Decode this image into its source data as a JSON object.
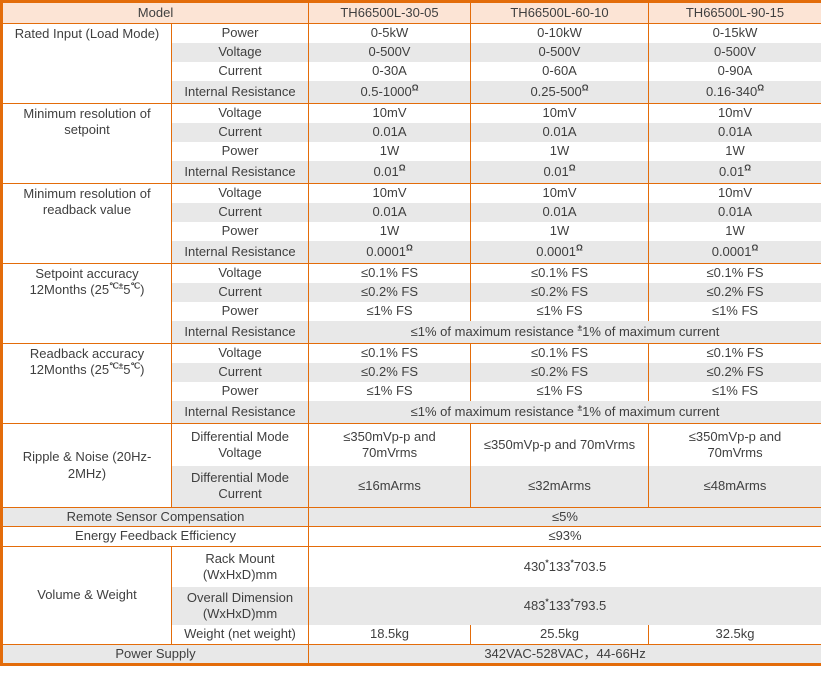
{
  "colors": {
    "grid_border": "#e36c0a",
    "header_bg": "#fce4d5",
    "alt_row_bg": "#e8e8e8",
    "text": "#3f3f3f"
  },
  "header": {
    "model_label": "Model",
    "models": [
      "TH66500L-30-05",
      "TH66500L-60-10",
      "TH66500L-90-15"
    ]
  },
  "rated_input": {
    "label": "Rated Input (Load Mode)",
    "rows": [
      {
        "param": "Power",
        "values": [
          "0-5kW",
          "0-10kW",
          "0-15kW"
        ]
      },
      {
        "param": "Voltage",
        "values": [
          "0-500V",
          "0-500V",
          "0-500V"
        ]
      },
      {
        "param": "Current",
        "values": [
          "0-30A",
          "0-60A",
          "0-90A"
        ]
      },
      {
        "param": "Internal Resistance",
        "values": [
          "0.5-1000^{Ω}",
          "0.25-500^{Ω}",
          "0.16-340^{Ω}"
        ]
      }
    ]
  },
  "setpoint_resolution": {
    "label": "Minimum resolution of\nsetpoint",
    "rows": [
      {
        "param": "Voltage",
        "values": [
          "10mV",
          "10mV",
          "10mV"
        ]
      },
      {
        "param": "Current",
        "values": [
          "0.01A",
          "0.01A",
          "0.01A"
        ]
      },
      {
        "param": "Power",
        "values": [
          "1W",
          "1W",
          "1W"
        ]
      },
      {
        "param": "Internal Resistance",
        "values": [
          "0.01^{Ω}",
          "0.01^{Ω}",
          "0.01^{Ω}"
        ]
      }
    ]
  },
  "readback_resolution": {
    "label": "Minimum resolution of\nreadback value",
    "rows": [
      {
        "param": "Voltage",
        "values": [
          "10mV",
          "10mV",
          "10mV"
        ]
      },
      {
        "param": "Current",
        "values": [
          "0.01A",
          "0.01A",
          "0.01A"
        ]
      },
      {
        "param": "Power",
        "values": [
          "1W",
          "1W",
          "1W"
        ]
      },
      {
        "param": "Internal Resistance",
        "values": [
          "0.0001^{Ω}",
          "0.0001^{Ω}",
          "0.0001^{Ω}"
        ]
      }
    ]
  },
  "setpoint_accuracy": {
    "label_line1": "Setpoint accuracy",
    "label_line2": "12Months (25^{℃±}5^{℃})",
    "rows": [
      {
        "param": "Voltage",
        "values": [
          "≤0.1% FS",
          "≤0.1% FS",
          "≤0.1% FS"
        ]
      },
      {
        "param": "Current",
        "values": [
          "≤0.2% FS",
          "≤0.2% FS",
          "≤0.2% FS"
        ]
      },
      {
        "param": "Power",
        "values": [
          "≤1% FS",
          "≤1% FS",
          "≤1% FS"
        ]
      },
      {
        "param": "Internal Resistance",
        "value_span": "≤1% of maximum resistance ^{±}1% of maximum current"
      }
    ]
  },
  "readback_accuracy": {
    "label_line1": "Readback accuracy",
    "label_line2": "12Months (25^{℃±}5^{℃})",
    "rows": [
      {
        "param": "Voltage",
        "values": [
          "≤0.1% FS",
          "≤0.1% FS",
          "≤0.1% FS"
        ]
      },
      {
        "param": "Current",
        "values": [
          "≤0.2% FS",
          "≤0.2% FS",
          "≤0.2% FS"
        ]
      },
      {
        "param": "Power",
        "values": [
          "≤1% FS",
          "≤1% FS",
          "≤1% FS"
        ]
      },
      {
        "param": "Internal Resistance",
        "value_span": "≤1% of maximum resistance ^{±}1% of maximum current"
      }
    ]
  },
  "ripple_noise": {
    "label": "Ripple & Noise (20Hz-2MHz)",
    "rows": [
      {
        "param": "Differential Mode Voltage",
        "values": [
          "≤350mVp-p and\n70mVrms",
          "≤350mVp-p and 70mVrms",
          "≤350mVp-p and\n70mVrms"
        ]
      },
      {
        "param": "Differential Mode Current",
        "values": [
          "≤16mArms",
          "≤32mArms",
          "≤48mArms"
        ]
      }
    ]
  },
  "remote_sensor": {
    "label": "Remote Sensor Compensation",
    "value": "≤5%"
  },
  "energy_feedback": {
    "label": "Energy Feedback Efficiency",
    "value": "≤93%"
  },
  "volume_weight": {
    "label": "Volume & Weight",
    "rows": [
      {
        "param": "Rack Mount (WxHxD)mm",
        "value_span": "430^{*}133^{*}703.5"
      },
      {
        "param": "Overall Dimension (WxHxD)mm",
        "value_span": "483^{*}133^{*}793.5"
      },
      {
        "param": "Weight (net weight)",
        "values": [
          "18.5kg",
          "25.5kg",
          "32.5kg"
        ]
      }
    ]
  },
  "power_supply": {
    "label": "Power Supply",
    "value": "342VAC-528VAC，44-66Hz"
  }
}
